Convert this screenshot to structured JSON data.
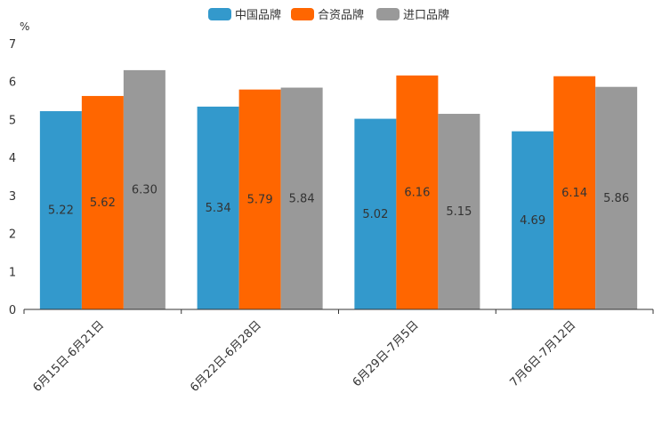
{
  "chart_data": {
    "type": "bar",
    "title": "",
    "xlabel": "",
    "ylabel": "%",
    "ylim": [
      0,
      7
    ],
    "yticks": [
      0,
      1,
      2,
      3,
      4,
      5,
      6,
      7
    ],
    "grid": false,
    "legend_position": "top-center",
    "categories": [
      "6月15日-6月21日",
      "6月22日-6月28日",
      "6月29日-7月5日",
      "7月6日-7月12日"
    ],
    "series": [
      {
        "name": "中国品牌",
        "color": "#3399cc",
        "values": [
          5.22,
          5.34,
          5.02,
          4.69
        ]
      },
      {
        "name": "合资品牌",
        "color": "#ff6600",
        "values": [
          5.62,
          5.79,
          6.16,
          6.14
        ]
      },
      {
        "name": "进口品牌",
        "color": "#999999",
        "values": [
          6.3,
          5.84,
          5.15,
          5.86
        ]
      }
    ]
  }
}
